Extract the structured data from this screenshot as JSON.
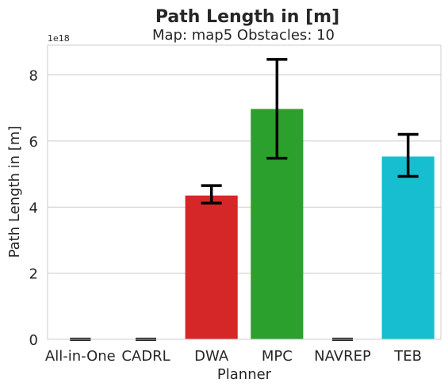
{
  "chart_data": {
    "type": "bar",
    "title": "Path Length in [m]",
    "subtitle": "Map: map5 Obstacles: 10",
    "xlabel": "Planner",
    "ylabel": "Path Length in [m]",
    "y_offset_label": "1e18",
    "categories": [
      "All-in-One",
      "CADRL",
      "DWA",
      "MPC",
      "NAVREP",
      "TEB"
    ],
    "values": [
      0,
      0,
      4.35,
      6.97,
      0,
      5.53
    ],
    "error_low": [
      0,
      0,
      4.12,
      5.48,
      0,
      4.93
    ],
    "error_high": [
      0,
      0,
      4.65,
      8.47,
      0,
      6.2
    ],
    "colors": [
      "#1f77b4",
      "#ff7f0e",
      "#d62728",
      "#2ca02c",
      "#9467bd",
      "#17becf"
    ],
    "ylim": [
      0,
      8.9
    ],
    "yticks": [
      "0",
      "2",
      "4",
      "6",
      "8"
    ],
    "ytick_values": [
      0,
      2,
      4,
      6,
      8
    ],
    "grid": "horizontal"
  }
}
